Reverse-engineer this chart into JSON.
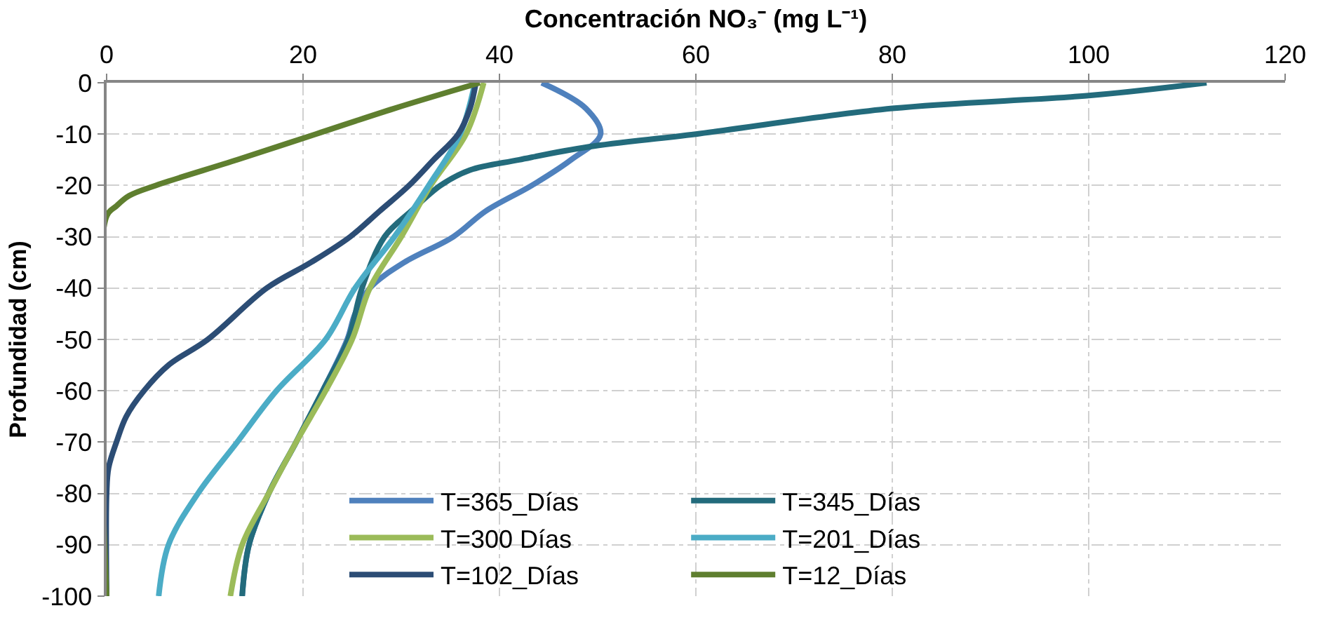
{
  "chart_data": {
    "type": "line",
    "xlabel": "Concentración NO₃⁻ (mg L⁻¹)",
    "ylabel": "Profundidad (cm)",
    "xlim": [
      0,
      120
    ],
    "xticks": [
      0,
      20,
      40,
      60,
      80,
      100,
      120
    ],
    "ylim": [
      -100,
      0
    ],
    "yticks": [
      0,
      -10,
      -20,
      -30,
      -40,
      -50,
      -60,
      -70,
      -80,
      -90,
      -100
    ],
    "grid": true,
    "legend": "bottom",
    "marker": "none",
    "line_style": "solid",
    "series": [
      {
        "name": "T=365_Días",
        "color": "#4f81bd",
        "x": [
          44.3,
          48.8,
          50.3,
          47.3,
          43.3,
          38.6,
          35.3,
          30.3,
          26.8,
          25.3,
          24.5,
          22,
          19.3,
          16.5,
          14.5,
          13.8
        ],
        "values": [
          0,
          -5,
          -10,
          -15,
          -20,
          -25,
          -30,
          -35,
          -40,
          -45,
          -50,
          -60,
          -70,
          -80,
          -90,
          -100
        ]
      },
      {
        "name": "T=345_Días",
        "color": "#236b7c",
        "x": [
          112,
          100,
          80,
          60,
          49,
          42,
          37,
          34,
          31,
          28.3,
          26,
          24.6,
          22,
          19.3,
          16.5,
          14.5,
          13.8
        ],
        "values": [
          0,
          -2.5,
          -5,
          -10,
          -12.5,
          -15,
          -17,
          -20,
          -25,
          -30,
          -40,
          -50,
          -60,
          -70,
          -80,
          -90,
          -100
        ]
      },
      {
        "name": "T=300 Días",
        "color": "#9bbb59",
        "x": [
          38.4,
          36.6,
          33,
          30,
          26.8,
          25,
          22.3,
          19.3,
          16.5,
          13.8,
          12.6
        ],
        "values": [
          0,
          -10,
          -20,
          -30,
          -40,
          -50,
          -60,
          -70,
          -80,
          -90,
          -100
        ]
      },
      {
        "name": "T=201_Días",
        "color": "#4bacc6",
        "x": [
          37.5,
          36,
          32.8,
          29.3,
          25.3,
          22.3,
          17.3,
          13.3,
          9.3,
          6.3,
          5.3
        ],
        "values": [
          0,
          -10,
          -20,
          -30,
          -40,
          -50,
          -60,
          -70,
          -80,
          -90,
          -100
        ]
      },
      {
        "name": "T=102_Días",
        "color": "#2c4d75",
        "x": [
          37.6,
          37,
          35.8,
          33.3,
          30.8,
          27.8,
          24.8,
          20.8,
          16.3,
          10.3,
          6.3,
          3.8,
          2,
          1,
          0.2,
          0,
          0
        ],
        "values": [
          0,
          -5,
          -10,
          -15,
          -20,
          -25,
          -30,
          -35,
          -40,
          -50,
          -55,
          -60,
          -65,
          -70,
          -75,
          -80,
          -100
        ]
      },
      {
        "name": "T=12_Días",
        "color": "#5f7f2f",
        "x": [
          38,
          29.3,
          21.3,
          13.3,
          5,
          2.3,
          1,
          0,
          0
        ],
        "values": [
          0,
          -5,
          -10,
          -15,
          -20,
          -22,
          -24,
          -26,
          -100
        ]
      }
    ]
  }
}
